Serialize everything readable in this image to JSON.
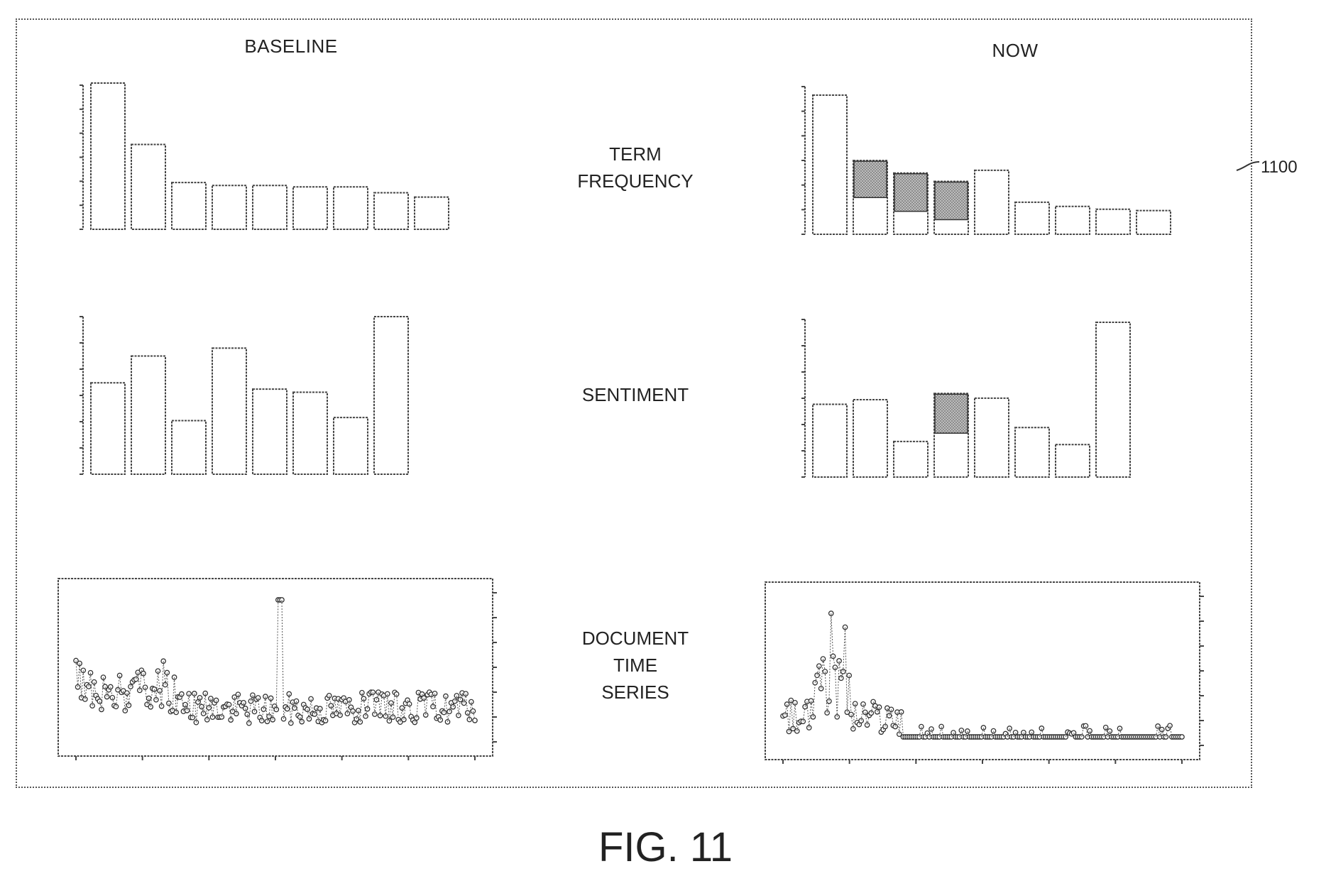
{
  "headers": {
    "baseline": "BASELINE",
    "now": "NOW"
  },
  "row_labels": {
    "term_frequency": [
      "TERM",
      "FREQUENCY"
    ],
    "sentiment": [
      "SENTIMENT"
    ],
    "document_time_series": [
      "DOCUMENT",
      "TIME",
      "SERIES"
    ]
  },
  "reference_numeral": "1100",
  "figure_caption": "FIG. 11",
  "chart_data": [
    {
      "type": "bar",
      "panel": "baseline-term-frequency",
      "values": [
        1.0,
        0.58,
        0.32,
        0.3,
        0.3,
        0.29,
        0.29,
        0.25,
        0.22
      ],
      "ylim": [
        0,
        1
      ]
    },
    {
      "type": "bar",
      "panel": "now-term-frequency",
      "values": [
        1.0,
        0.53,
        0.44,
        0.38,
        0.46,
        0.23,
        0.2,
        0.18,
        0.17
      ],
      "highlight": [
        0,
        0.29,
        0.3,
        0.3,
        0,
        0,
        0,
        0,
        0
      ],
      "ylim": [
        0,
        1
      ]
    },
    {
      "type": "bar",
      "panel": "baseline-sentiment",
      "values": [
        0.58,
        0.75,
        0.34,
        0.8,
        0.54,
        0.52,
        0.36,
        1.0
      ],
      "ylim": [
        0,
        1
      ]
    },
    {
      "type": "bar",
      "panel": "now-sentiment",
      "values": [
        0.47,
        0.5,
        0.23,
        0.54,
        0.51,
        0.32,
        0.21,
        1.0
      ],
      "highlight": [
        0,
        0,
        0,
        0.28,
        0,
        0,
        0,
        0
      ],
      "ylim": [
        0,
        1
      ]
    },
    {
      "type": "scatter",
      "panel": "baseline-document-time-series",
      "n_points": 220,
      "spike_index": 0.51,
      "spike_height": 0.95
    },
    {
      "type": "scatter",
      "panel": "now-document-time-series",
      "n_points": 200,
      "spike_index": 0.12,
      "spike_height": 0.88
    }
  ]
}
